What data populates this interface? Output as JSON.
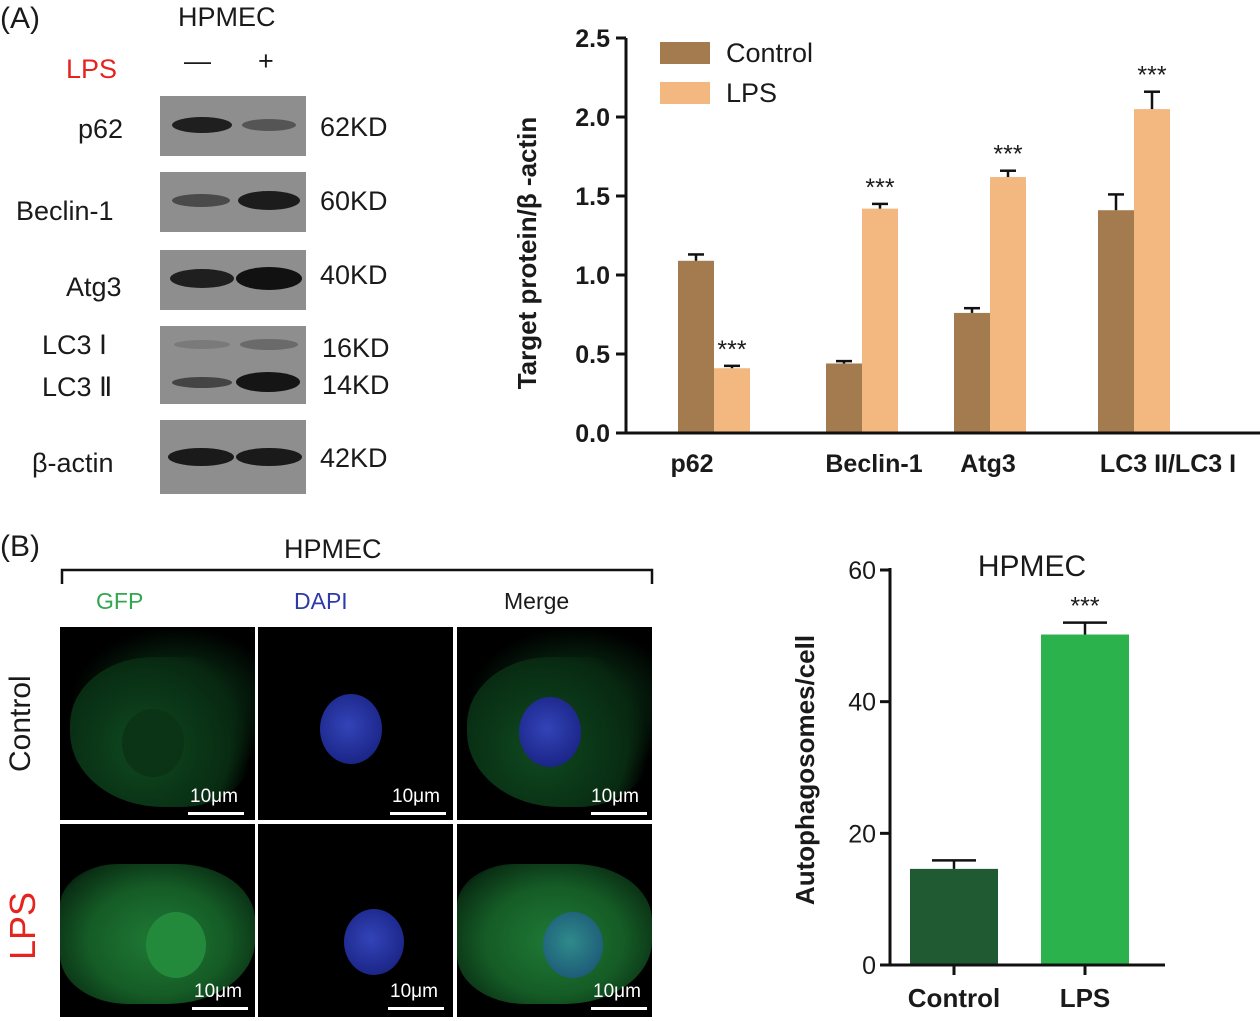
{
  "panel_a": {
    "letter": "(A)",
    "cell_line": "HPMEC",
    "lps_label": "LPS",
    "minus": "—",
    "plus": "+",
    "lanes": [
      {
        "label": "p62",
        "kd": "62KD"
      },
      {
        "label": "Beclin-1",
        "kd": "60KD"
      },
      {
        "label": "Atg3",
        "kd": "40KD"
      },
      {
        "label": "LC3 Ⅰ",
        "kd": "16KD"
      },
      {
        "label": "LC3 Ⅱ",
        "kd": "14KD"
      },
      {
        "label": "β-actin",
        "kd": "42KD"
      }
    ]
  },
  "panel_b": {
    "letter": "(B)",
    "cell_line": "HPMEC",
    "columns": [
      "GFP",
      "DAPI",
      "Merge"
    ],
    "rows": [
      "Control",
      "LPS"
    ],
    "scale": "10μm"
  },
  "colors": {
    "control_brown": "#a47a4f",
    "lps_orange": "#f2b880",
    "control_green": "#1f5a32",
    "lps_green": "#2bb24c",
    "lps_red": "#e52420",
    "gfp_green": "#33a650",
    "dapi_blue": "#2e3aa8"
  },
  "chart_data": [
    {
      "type": "bar",
      "ylabel": "Target protein/β -actin",
      "ylim": [
        0,
        2.5
      ],
      "yticks": [
        "0.0",
        "0.5",
        "1.0",
        "1.5",
        "2.0",
        "2.5"
      ],
      "categories": [
        "p62",
        "Beclin-1",
        "Atg3",
        "LC3 II/LC3 I"
      ],
      "legend": "top-left",
      "series": [
        {
          "name": "Control",
          "values": [
            1.09,
            0.44,
            0.76,
            1.41
          ],
          "errors": [
            0.04,
            0.015,
            0.03,
            0.1
          ]
        },
        {
          "name": "LPS",
          "values": [
            0.41,
            1.42,
            1.62,
            2.05
          ],
          "errors": [
            0.015,
            0.03,
            0.04,
            0.11
          ]
        }
      ],
      "annotations": [
        "***",
        "***",
        "***",
        "***"
      ]
    },
    {
      "type": "bar",
      "title": "HPMEC",
      "ylabel": "Autophagosomes/cell",
      "ylim": [
        0,
        60
      ],
      "yticks": [
        "0",
        "20",
        "40",
        "60"
      ],
      "categories": [
        "Control",
        "LPS"
      ],
      "values": [
        14.6,
        50.2
      ],
      "errors": [
        1.3,
        1.8
      ],
      "annotations": [
        "",
        "***"
      ]
    }
  ]
}
